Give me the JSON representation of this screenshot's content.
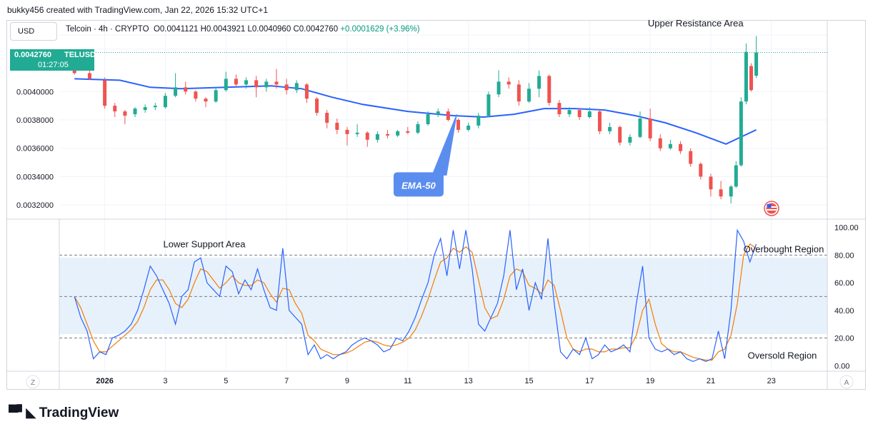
{
  "header": {
    "byline": "bukky456 created with TradingView.com, Jan 22, 2026 15:32 UTC+1"
  },
  "currency_button": "USD",
  "legend": {
    "symbol": "Telcoin · 4h · CRYPTO",
    "open": "O0.0041121",
    "high": "H0.0043921",
    "low": "L0.0040960",
    "close": "C0.0042760",
    "change": "+0.0001629 (+3.96%)"
  },
  "price_badge": {
    "price": "0.0042760",
    "ticker": "TELUSD",
    "countdown": "01:27:05"
  },
  "footer": {
    "brand": "TradingView"
  },
  "bottom_bar": {
    "left_btn": "Z",
    "right_btn": "A"
  },
  "colors": {
    "up": "#22ab94",
    "down": "#ef5350",
    "ema": "#2962ff",
    "stoch_k": "#2962ff",
    "stoch_d": "#f57c00",
    "band": "#e3effc",
    "callout": "#5b8def"
  },
  "chart_data": [
    {
      "type": "candlestick",
      "timeframe": "4h",
      "x_tick_labels": [
        "2026",
        "3",
        "5",
        "7",
        "9",
        "11",
        "13",
        "15",
        "17",
        "19",
        "21",
        "23"
      ],
      "y_tick_labels": [
        "0.0040000",
        "0.0038000",
        "0.0036000",
        "0.0034000",
        "0.0032000"
      ],
      "ylim": [
        0.0031,
        0.0045
      ],
      "last_price": 0.004276,
      "annotations": [
        {
          "text": "Upper Resistance Area",
          "x": "Jan 20 12:00",
          "y": 0.00448
        },
        {
          "text": "EMA-50",
          "x": "Jan 11 08:00",
          "y": 0.00334,
          "arrow_to": {
            "x": "Jan 12 08:00",
            "y": 0.00386
          }
        }
      ],
      "ema50_points": [
        {
          "x": "Dec 31 00:00",
          "y": 0.00409
        },
        {
          "x": "Jan 1 12:00",
          "y": 0.00408
        },
        {
          "x": "Jan 2 12:00",
          "y": 0.00403
        },
        {
          "x": "Jan 3 12:00",
          "y": 0.00402
        },
        {
          "x": "Jan 5 00:00",
          "y": 0.00403
        },
        {
          "x": "Jan 6 12:00",
          "y": 0.00404
        },
        {
          "x": "Jan 7 12:00",
          "y": 0.00402
        },
        {
          "x": "Jan 8 12:00",
          "y": 0.00396
        },
        {
          "x": "Jan 9 12:00",
          "y": 0.00391
        },
        {
          "x": "Jan 11 00:00",
          "y": 0.00386
        },
        {
          "x": "Jan 12 12:00",
          "y": 0.00383
        },
        {
          "x": "Jan 13 12:00",
          "y": 0.00382
        },
        {
          "x": "Jan 14 12:00",
          "y": 0.00384
        },
        {
          "x": "Jan 15 12:00",
          "y": 0.00388
        },
        {
          "x": "Jan 16 12:00",
          "y": 0.00388
        },
        {
          "x": "Jan 17 12:00",
          "y": 0.00387
        },
        {
          "x": "Jan 18 12:00",
          "y": 0.00383
        },
        {
          "x": "Jan 19 12:00",
          "y": 0.00378
        },
        {
          "x": "Jan 20 12:00",
          "y": 0.00371
        },
        {
          "x": "Jan 21 12:00",
          "y": 0.00363
        },
        {
          "x": "Jan 22 12:00",
          "y": 0.00373
        }
      ],
      "series": [
        {
          "name": "TELUSD",
          "ohlc": [
            {
              "x": "Dec 31 00:00",
              "o": 0.00418,
              "h": 0.00419,
              "l": 0.00412,
              "c": 0.00413
            },
            {
              "x": "Dec 31 12:00",
              "o": 0.00413,
              "h": 0.00415,
              "l": 0.00408,
              "c": 0.00409
            },
            {
              "x": "Jan 1 00:00",
              "o": 0.00408,
              "h": 0.0041,
              "l": 0.00388,
              "c": 0.0039
            },
            {
              "x": "Jan 1 08:00",
              "o": 0.0039,
              "h": 0.00392,
              "l": 0.00382,
              "c": 0.00386
            },
            {
              "x": "Jan 1 16:00",
              "o": 0.00386,
              "h": 0.00387,
              "l": 0.00377,
              "c": 0.00383
            },
            {
              "x": "Jan 2 00:00",
              "o": 0.00384,
              "h": 0.00389,
              "l": 0.00382,
              "c": 0.00388
            },
            {
              "x": "Jan 2 08:00",
              "o": 0.00387,
              "h": 0.00391,
              "l": 0.00385,
              "c": 0.00389
            },
            {
              "x": "Jan 2 16:00",
              "o": 0.00389,
              "h": 0.00392,
              "l": 0.00387,
              "c": 0.0039
            },
            {
              "x": "Jan 3 00:00",
              "o": 0.00389,
              "h": 0.00399,
              "l": 0.00388,
              "c": 0.00397
            },
            {
              "x": "Jan 3 08:00",
              "o": 0.00397,
              "h": 0.00413,
              "l": 0.00396,
              "c": 0.00403
            },
            {
              "x": "Jan 3 16:00",
              "o": 0.00403,
              "h": 0.00407,
              "l": 0.00398,
              "c": 0.004
            },
            {
              "x": "Jan 4 00:00",
              "o": 0.004,
              "h": 0.00401,
              "l": 0.00393,
              "c": 0.00395
            },
            {
              "x": "Jan 4 08:00",
              "o": 0.00395,
              "h": 0.00396,
              "l": 0.00389,
              "c": 0.00393
            },
            {
              "x": "Jan 4 16:00",
              "o": 0.00393,
              "h": 0.00403,
              "l": 0.00392,
              "c": 0.00401
            },
            {
              "x": "Jan 5 00:00",
              "o": 0.00401,
              "h": 0.00414,
              "l": 0.004,
              "c": 0.00409
            },
            {
              "x": "Jan 5 08:00",
              "o": 0.00409,
              "h": 0.00412,
              "l": 0.00403,
              "c": 0.00405
            },
            {
              "x": "Jan 5 16:00",
              "o": 0.00405,
              "h": 0.0041,
              "l": 0.00402,
              "c": 0.00408
            },
            {
              "x": "Jan 6 00:00",
              "o": 0.00408,
              "h": 0.00411,
              "l": 0.00396,
              "c": 0.00403
            },
            {
              "x": "Jan 6 08:00",
              "o": 0.00403,
              "h": 0.00409,
              "l": 0.004,
              "c": 0.00407
            },
            {
              "x": "Jan 6 16:00",
              "o": 0.00407,
              "h": 0.00416,
              "l": 0.00402,
              "c": 0.00405
            },
            {
              "x": "Jan 7 00:00",
              "o": 0.00405,
              "h": 0.00409,
              "l": 0.00398,
              "c": 0.00401
            },
            {
              "x": "Jan 7 08:00",
              "o": 0.00401,
              "h": 0.00408,
              "l": 0.00399,
              "c": 0.00406
            },
            {
              "x": "Jan 7 16:00",
              "o": 0.00405,
              "h": 0.00406,
              "l": 0.00392,
              "c": 0.00395
            },
            {
              "x": "Jan 8 00:00",
              "o": 0.00395,
              "h": 0.00396,
              "l": 0.00383,
              "c": 0.00385
            },
            {
              "x": "Jan 8 08:00",
              "o": 0.00385,
              "h": 0.00387,
              "l": 0.00374,
              "c": 0.00378
            },
            {
              "x": "Jan 8 16:00",
              "o": 0.00378,
              "h": 0.00381,
              "l": 0.0037,
              "c": 0.00373
            },
            {
              "x": "Jan 9 00:00",
              "o": 0.00373,
              "h": 0.00375,
              "l": 0.00362,
              "c": 0.0037
            },
            {
              "x": "Jan 9 08:00",
              "o": 0.0037,
              "h": 0.00377,
              "l": 0.00368,
              "c": 0.00371
            },
            {
              "x": "Jan 9 16:00",
              "o": 0.00371,
              "h": 0.00372,
              "l": 0.00361,
              "c": 0.00366
            },
            {
              "x": "Jan 10 00:00",
              "o": 0.00366,
              "h": 0.00372,
              "l": 0.00364,
              "c": 0.0037
            },
            {
              "x": "Jan 10 08:00",
              "o": 0.0037,
              "h": 0.00373,
              "l": 0.00367,
              "c": 0.00369
            },
            {
              "x": "Jan 10 16:00",
              "o": 0.00369,
              "h": 0.00373,
              "l": 0.00368,
              "c": 0.00372
            },
            {
              "x": "Jan 11 00:00",
              "o": 0.00372,
              "h": 0.00375,
              "l": 0.0037,
              "c": 0.00371
            },
            {
              "x": "Jan 11 08:00",
              "o": 0.00371,
              "h": 0.00379,
              "l": 0.0037,
              "c": 0.00377
            },
            {
              "x": "Jan 11 16:00",
              "o": 0.00377,
              "h": 0.00386,
              "l": 0.00376,
              "c": 0.00384
            },
            {
              "x": "Jan 12 00:00",
              "o": 0.00384,
              "h": 0.00388,
              "l": 0.00382,
              "c": 0.00386
            },
            {
              "x": "Jan 12 08:00",
              "o": 0.00386,
              "h": 0.00388,
              "l": 0.00379,
              "c": 0.0038
            },
            {
              "x": "Jan 12 16:00",
              "o": 0.0038,
              "h": 0.00381,
              "l": 0.00371,
              "c": 0.00373
            },
            {
              "x": "Jan 13 00:00",
              "o": 0.00373,
              "h": 0.00378,
              "l": 0.00372,
              "c": 0.00376
            },
            {
              "x": "Jan 13 08:00",
              "o": 0.00376,
              "h": 0.00385,
              "l": 0.00374,
              "c": 0.00383
            },
            {
              "x": "Jan 13 16:00",
              "o": 0.00383,
              "h": 0.004,
              "l": 0.00382,
              "c": 0.00398
            },
            {
              "x": "Jan 14 00:00",
              "o": 0.00398,
              "h": 0.00415,
              "l": 0.00396,
              "c": 0.00407
            },
            {
              "x": "Jan 14 08:00",
              "o": 0.00407,
              "h": 0.0041,
              "l": 0.00402,
              "c": 0.00405
            },
            {
              "x": "Jan 14 16:00",
              "o": 0.00405,
              "h": 0.00408,
              "l": 0.0039,
              "c": 0.00393
            },
            {
              "x": "Jan 15 00:00",
              "o": 0.00393,
              "h": 0.00406,
              "l": 0.00392,
              "c": 0.00402
            },
            {
              "x": "Jan 15 08:00",
              "o": 0.00402,
              "h": 0.00415,
              "l": 0.00396,
              "c": 0.00411
            },
            {
              "x": "Jan 15 16:00",
              "o": 0.00411,
              "h": 0.00412,
              "l": 0.0039,
              "c": 0.00392
            },
            {
              "x": "Jan 16 00:00",
              "o": 0.00392,
              "h": 0.00394,
              "l": 0.00382,
              "c": 0.00384
            },
            {
              "x": "Jan 16 08:00",
              "o": 0.00384,
              "h": 0.00389,
              "l": 0.00382,
              "c": 0.00387
            },
            {
              "x": "Jan 16 16:00",
              "o": 0.00387,
              "h": 0.00388,
              "l": 0.0038,
              "c": 0.00382
            },
            {
              "x": "Jan 17 00:00",
              "o": 0.00382,
              "h": 0.00389,
              "l": 0.00381,
              "c": 0.00386
            },
            {
              "x": "Jan 17 08:00",
              "o": 0.00386,
              "h": 0.00387,
              "l": 0.0037,
              "c": 0.00372
            },
            {
              "x": "Jan 17 16:00",
              "o": 0.00372,
              "h": 0.00378,
              "l": 0.0037,
              "c": 0.00375
            },
            {
              "x": "Jan 18 00:00",
              "o": 0.00375,
              "h": 0.00376,
              "l": 0.00362,
              "c": 0.00364
            },
            {
              "x": "Jan 18 08:00",
              "o": 0.00364,
              "h": 0.0037,
              "l": 0.00362,
              "c": 0.00368
            },
            {
              "x": "Jan 18 16:00",
              "o": 0.00368,
              "h": 0.00386,
              "l": 0.00367,
              "c": 0.00381
            },
            {
              "x": "Jan 19 00:00",
              "o": 0.00381,
              "h": 0.00388,
              "l": 0.00365,
              "c": 0.00367
            },
            {
              "x": "Jan 19 08:00",
              "o": 0.00367,
              "h": 0.0037,
              "l": 0.00358,
              "c": 0.0036
            },
            {
              "x": "Jan 19 16:00",
              "o": 0.0036,
              "h": 0.00366,
              "l": 0.00359,
              "c": 0.00363
            },
            {
              "x": "Jan 20 00:00",
              "o": 0.00363,
              "h": 0.00365,
              "l": 0.00356,
              "c": 0.00358
            },
            {
              "x": "Jan 20 08:00",
              "o": 0.00358,
              "h": 0.0036,
              "l": 0.00347,
              "c": 0.00349
            },
            {
              "x": "Jan 20 16:00",
              "o": 0.00349,
              "h": 0.0035,
              "l": 0.00338,
              "c": 0.0034
            },
            {
              "x": "Jan 21 00:00",
              "o": 0.0034,
              "h": 0.00342,
              "l": 0.00326,
              "c": 0.00331
            },
            {
              "x": "Jan 21 08:00",
              "o": 0.00331,
              "h": 0.00337,
              "l": 0.00324,
              "c": 0.00326
            },
            {
              "x": "Jan 21 16:00",
              "o": 0.00326,
              "h": 0.00334,
              "l": 0.00321,
              "c": 0.00333
            },
            {
              "x": "Jan 21 20:00",
              "o": 0.00333,
              "h": 0.00351,
              "l": 0.00332,
              "c": 0.00348
            },
            {
              "x": "Jan 22 00:00",
              "o": 0.00348,
              "h": 0.00396,
              "l": 0.00347,
              "c": 0.00393
            },
            {
              "x": "Jan 22 04:00",
              "o": 0.00393,
              "h": 0.00434,
              "l": 0.00391,
              "c": 0.00428
            },
            {
              "x": "Jan 22 08:00",
              "o": 0.00418,
              "h": 0.0042,
              "l": 0.004,
              "c": 0.00401
            },
            {
              "x": "Jan 22 12:00",
              "o": 0.004112,
              "h": 0.004392,
              "l": 0.004096,
              "c": 0.004276
            }
          ]
        }
      ]
    },
    {
      "type": "line",
      "indicator": "stochastic",
      "x_tick_labels": [
        "2026",
        "3",
        "5",
        "7",
        "9",
        "11",
        "13",
        "15",
        "17",
        "19",
        "21",
        "23"
      ],
      "y_tick_labels": [
        "100.00",
        "80.00",
        "60.00",
        "40.00",
        "20.00",
        "0.00"
      ],
      "ylim": [
        -4,
        106
      ],
      "levels": [
        80,
        50,
        20
      ],
      "annotations": [
        "Lower Support Area",
        "Overbought Region",
        "Oversold Region"
      ],
      "series": [
        {
          "values": [
            50,
            35,
            25,
            5,
            10,
            8,
            20,
            22,
            25,
            30,
            40,
            55,
            72,
            65,
            55,
            45,
            30,
            50,
            55,
            75,
            78,
            60,
            55,
            50,
            72,
            68,
            52,
            62,
            55,
            70,
            55,
            42,
            40,
            85,
            40,
            35,
            30,
            8,
            15,
            5,
            8,
            5,
            8,
            10,
            15,
            18,
            20,
            18,
            15,
            10,
            12,
            20,
            18,
            25,
            35,
            48,
            60,
            80,
            92,
            65,
            98,
            70,
            98,
            70,
            30,
            25,
            35,
            45,
            65,
            98,
            55,
            70,
            40,
            60,
            48,
            92,
            45,
            10,
            5,
            12,
            8,
            20,
            5,
            8,
            15,
            10,
            12,
            15,
            10,
            45,
            72,
            20,
            12,
            10,
            12,
            8,
            10,
            5,
            3,
            5,
            3,
            5,
            25,
            5,
            40,
            98,
            90,
            75,
            88
          ],
          "x_range": [
            "Dec 31 00:00",
            "Jan 22 12:00"
          ]
        },
        {
          "values": [
            50,
            42,
            30,
            18,
            10,
            10,
            14,
            18,
            22,
            26,
            32,
            42,
            55,
            62,
            62,
            55,
            45,
            42,
            48,
            60,
            70,
            68,
            62,
            56,
            60,
            65,
            60,
            58,
            58,
            62,
            60,
            52,
            46,
            56,
            55,
            45,
            38,
            22,
            18,
            12,
            10,
            8,
            8,
            9,
            11,
            14,
            17,
            18,
            17,
            15,
            14,
            15,
            17,
            20,
            26,
            36,
            48,
            62,
            75,
            78,
            85,
            82,
            86,
            82,
            62,
            42,
            34,
            36,
            48,
            65,
            70,
            68,
            58,
            56,
            52,
            62,
            58,
            40,
            20,
            12,
            10,
            12,
            12,
            10,
            10,
            12,
            12,
            13,
            13,
            22,
            40,
            48,
            30,
            16,
            12,
            10,
            10,
            8,
            6,
            5,
            4,
            4,
            10,
            12,
            22,
            45,
            80,
            88,
            85
          ],
          "x_range": [
            "Dec 31 00:00",
            "Jan 22 12:00"
          ]
        }
      ]
    }
  ]
}
